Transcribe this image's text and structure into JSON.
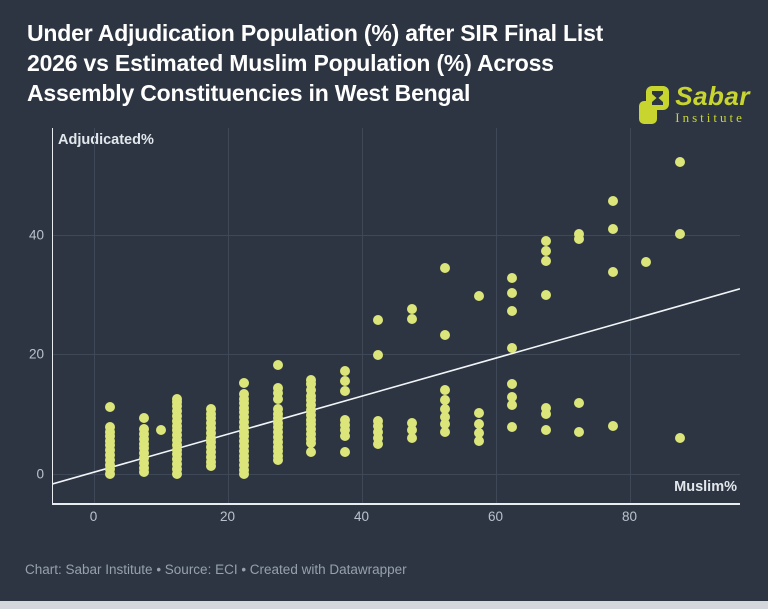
{
  "header": {
    "title_lines": [
      "Under Adjudication Population (%) after SIR Final List",
      "2026 vs Estimated Muslim Population (%) Across",
      "Assembly Constituencies in West Bengal"
    ]
  },
  "logo": {
    "name": "Sabar",
    "sub": "Institute",
    "color": "#c8d52f"
  },
  "footer": {
    "note": "Chart: Sabar Institute • Source: ECI • Created with Datawrapper"
  },
  "chart_data": {
    "type": "scatter",
    "title": "Under Adjudication Population (%) after SIR Final List 2026 vs Estimated Muslim Population (%) Across Assembly Constituencies in West Bengal",
    "x_axis_label": "Muslim%",
    "y_axis_label": "Adjudicated%",
    "x_ticks": [
      0,
      20,
      40,
      60,
      80
    ],
    "y_ticks": [
      0,
      20,
      40
    ],
    "xlim": [
      -6.2,
      96.5
    ],
    "ylim": [
      -5.0,
      57.8
    ],
    "grid": true,
    "legend": "none",
    "dot_color": "#dbe57a",
    "background_color": "#2d3542",
    "trendline": {
      "slope": 0.3175,
      "intercept": 0.3,
      "color": "#f2f5f8"
    },
    "columns": [
      {
        "x": 2.5,
        "ys": [
          11.2,
          7.8,
          7.1,
          6.4,
          5.6,
          4.8,
          4.0,
          3.2,
          2.4,
          1.6,
          0.8,
          0.0
        ]
      },
      {
        "x": 7.5,
        "ys": [
          9.3,
          7.5,
          6.7,
          5.9,
          5.1,
          4.3,
          3.5,
          2.7,
          1.9,
          1.1,
          0.3
        ]
      },
      {
        "x": 10.0,
        "ys": [
          7.3
        ]
      },
      {
        "x": 12.5,
        "ys": [
          12.6,
          12.0,
          11.3,
          10.5,
          9.7,
          8.9,
          8.1,
          7.3,
          6.5,
          5.7,
          4.9,
          4.1,
          3.3,
          2.5,
          1.7,
          0.9,
          0.1
        ]
      },
      {
        "x": 17.5,
        "ys": [
          10.9,
          10.1,
          9.3,
          8.5,
          7.7,
          6.9,
          6.1,
          5.3,
          4.5,
          3.7,
          2.9,
          2.1,
          1.3
        ]
      },
      {
        "x": 22.5,
        "ys": [
          15.2,
          13.3,
          12.6,
          11.9,
          11.1,
          10.3,
          9.5,
          8.7,
          7.9,
          7.1,
          6.3,
          5.5,
          4.7,
          3.9,
          3.1,
          2.3,
          1.5,
          0.7,
          0.0
        ]
      },
      {
        "x": 27.5,
        "ys": [
          18.2,
          14.3,
          13.5,
          12.6,
          10.8,
          10.1,
          9.4,
          8.6,
          7.8,
          7.0,
          6.2,
          5.4,
          4.6,
          3.8,
          3.1,
          2.3
        ]
      },
      {
        "x": 32.5,
        "ys": [
          15.8,
          15.0,
          14.1,
          13.0,
          12.3,
          11.5,
          10.7,
          9.9,
          9.1,
          8.3,
          7.5,
          6.7,
          5.9,
          5.2,
          3.7
        ]
      },
      {
        "x": 37.5,
        "ys": [
          17.2,
          15.6,
          13.9,
          9.0,
          8.2,
          7.3,
          6.3,
          3.7
        ]
      },
      {
        "x": 42.5,
        "ys": [
          25.8,
          19.9,
          8.8,
          8.0,
          7.1,
          6.1,
          5.0
        ]
      },
      {
        "x": 47.5,
        "ys": [
          27.6,
          25.9,
          8.5,
          7.3,
          6.1
        ]
      },
      {
        "x": 52.5,
        "ys": [
          34.5,
          23.2,
          14.0,
          12.3,
          10.8,
          9.6,
          8.3,
          7.0
        ]
      },
      {
        "x": 57.5,
        "ys": [
          29.7,
          10.2,
          8.3,
          6.9,
          5.5
        ]
      },
      {
        "x": 62.5,
        "ys": [
          32.7,
          30.2,
          27.2,
          21.1,
          15.0,
          12.8,
          11.6,
          7.9
        ]
      },
      {
        "x": 67.5,
        "ys": [
          39.0,
          37.2,
          35.6,
          29.9,
          11.0,
          10.1,
          7.4
        ]
      },
      {
        "x": 72.5,
        "ys": [
          40.1,
          39.2,
          11.8,
          7.0
        ]
      },
      {
        "x": 77.5,
        "ys": [
          45.6,
          41.0,
          33.7,
          8.1
        ]
      },
      {
        "x": 82.5,
        "ys": [
          35.4
        ]
      },
      {
        "x": 87.5,
        "ys": [
          52.1,
          40.1,
          6.0
        ]
      }
    ]
  }
}
